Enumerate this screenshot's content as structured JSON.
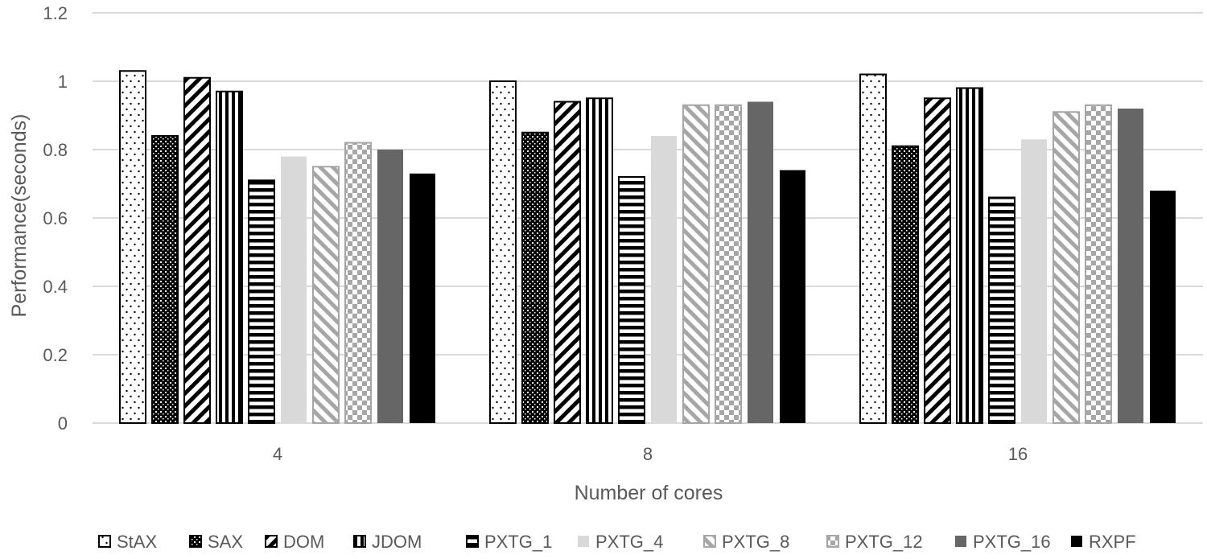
{
  "chart_data": {
    "type": "bar",
    "title": "",
    "xlabel": "Number of cores",
    "ylabel": "Performance(seconds)",
    "ylim": [
      0,
      1.2
    ],
    "yticks": [
      "0",
      "0.2",
      "0.4",
      "0.6",
      "0.8",
      "1",
      "1.2"
    ],
    "grid": true,
    "legend_position": "bottom",
    "categories": [
      "4",
      "8",
      "16"
    ],
    "series": [
      {
        "name": "StAX",
        "values": [
          1.03,
          1.0,
          1.02
        ],
        "pattern": "dots",
        "color": "#000000"
      },
      {
        "name": "SAX",
        "values": [
          0.84,
          0.85,
          0.81
        ],
        "pattern": "dense-dots",
        "color": "#000000"
      },
      {
        "name": "DOM",
        "values": [
          1.01,
          0.94,
          0.95
        ],
        "pattern": "diag-down",
        "color": "#000000"
      },
      {
        "name": "JDOM",
        "values": [
          0.97,
          0.95,
          0.98
        ],
        "pattern": "vertical",
        "color": "#000000"
      },
      {
        "name": "PXTG_1",
        "values": [
          0.71,
          0.72,
          0.66
        ],
        "pattern": "horizontal",
        "color": "#000000"
      },
      {
        "name": "PXTG_4",
        "values": [
          0.78,
          0.84,
          0.83
        ],
        "pattern": "solid",
        "color": "#d9d9d9"
      },
      {
        "name": "PXTG_8",
        "values": [
          0.75,
          0.93,
          0.91
        ],
        "pattern": "diag-up",
        "color": "#a6a6a6"
      },
      {
        "name": "PXTG_12",
        "values": [
          0.82,
          0.93,
          0.93
        ],
        "pattern": "checker",
        "color": "#a6a6a6"
      },
      {
        "name": "PXTG_16",
        "values": [
          0.8,
          0.94,
          0.92
        ],
        "pattern": "solid",
        "color": "#666666"
      },
      {
        "name": "RXPF",
        "values": [
          0.73,
          0.74,
          0.68
        ],
        "pattern": "solid",
        "color": "#000000"
      }
    ]
  }
}
